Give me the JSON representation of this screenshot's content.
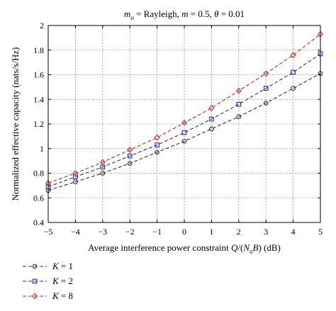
{
  "chart_data": {
    "type": "line",
    "title": "m_o = Rayleigh, m = 0.5, θ = 0.01",
    "title_parts": {
      "var1": "m",
      "sub1": "o",
      "eq1": " = Rayleigh, ",
      "var2": "m",
      "eq2": " = 0.5, ",
      "var3": "θ",
      "eq3": " = 0.01"
    },
    "xlabel": "Average interference power constraint Q/(N_oB) (dB)",
    "xlabel_parts": {
      "pre": "Average interference power constraint ",
      "q": "Q",
      "slash": "/(",
      "n": "N",
      "sub": "o",
      "b": "B",
      "post": ") (dB)"
    },
    "ylabel": "Normalized effective capacity (nats/s/Hz)",
    "xlim": [
      -5,
      5
    ],
    "ylim": [
      0.4,
      2
    ],
    "grid": true,
    "legend_position": "bottom-left below plot",
    "x": [
      -5,
      -4,
      -3,
      -2,
      -1,
      0,
      1,
      2,
      3,
      4,
      5
    ],
    "xticks": [
      "−5",
      "−4",
      "−3",
      "−2",
      "−1",
      "0",
      "1",
      "2",
      "3",
      "4",
      "5"
    ],
    "yticks": [
      "0.4",
      "0.6",
      "0.8",
      "1",
      "1.2",
      "1.4",
      "1.6",
      "1.8",
      "2"
    ],
    "series": [
      {
        "name": "K = 1",
        "legend_var": "K",
        "legend_eq": " = 1",
        "color": "#333333",
        "marker": "circle",
        "values": [
          0.66,
          0.73,
          0.8,
          0.88,
          0.97,
          1.06,
          1.16,
          1.26,
          1.37,
          1.49,
          1.61
        ]
      },
      {
        "name": "K = 2",
        "legend_var": "K",
        "legend_eq": " = 2",
        "color": "#1f2fa8",
        "marker": "square",
        "values": [
          0.69,
          0.77,
          0.85,
          0.94,
          1.03,
          1.13,
          1.24,
          1.36,
          1.49,
          1.62,
          1.77
        ]
      },
      {
        "name": "K = 8",
        "legend_var": "K",
        "legend_eq": " = 8",
        "color": "#d42525",
        "marker": "diamond",
        "values": [
          0.72,
          0.8,
          0.89,
          0.99,
          1.09,
          1.21,
          1.33,
          1.47,
          1.61,
          1.76,
          1.93
        ]
      }
    ]
  }
}
